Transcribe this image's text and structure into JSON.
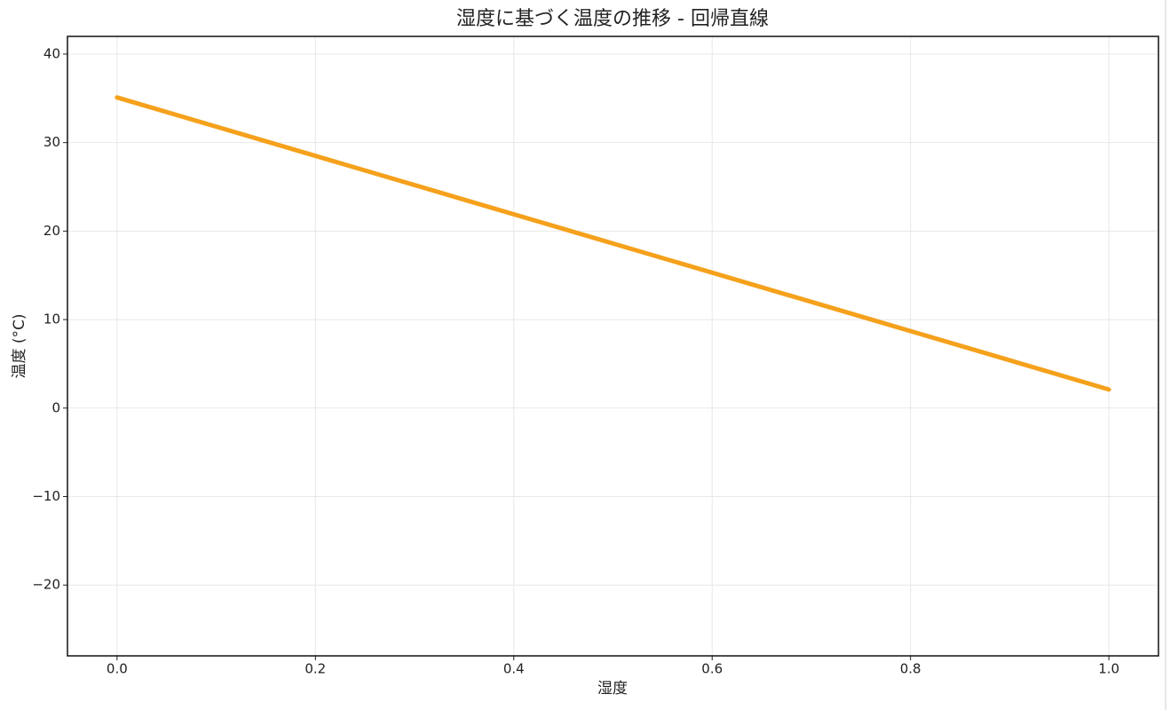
{
  "chart_data": {
    "type": "line",
    "title": "湿度に基づく温度の推移 - 回帰直線",
    "x_label": "湿度",
    "y_label": "温度 (°C)",
    "x": [
      0,
      1
    ],
    "values": [
      35.1,
      2.1
    ],
    "color": "#f5a11c",
    "xlim": [
      -0.05,
      1.05
    ],
    "ylim": [
      -28,
      42
    ],
    "xticks": [
      {
        "value": 0,
        "label": "0.0"
      },
      {
        "value": 0.2,
        "label": "0.2"
      },
      {
        "value": 0.4,
        "label": "0.4"
      },
      {
        "value": 0.6,
        "label": "0.6"
      },
      {
        "value": 0.8,
        "label": "0.8"
      },
      {
        "value": 1,
        "label": "1.0"
      }
    ],
    "yticks": [
      {
        "value": -20,
        "label": "−20"
      },
      {
        "value": -10,
        "label": "−10"
      },
      0,
      10,
      20,
      30,
      40
    ],
    "grid": true
  }
}
